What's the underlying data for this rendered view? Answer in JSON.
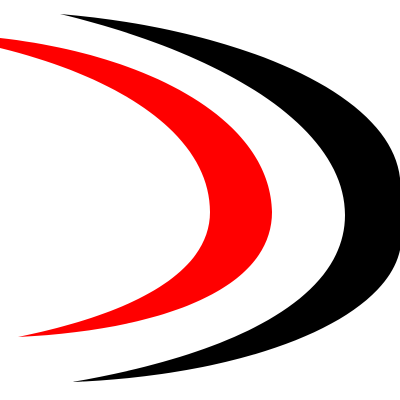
{
  "logo": {
    "icon": "double-crescent-swoosh-icon",
    "colors": {
      "background": "#ffffff",
      "outer_arc": "#000000",
      "inner_arc": "#ff0000"
    }
  }
}
